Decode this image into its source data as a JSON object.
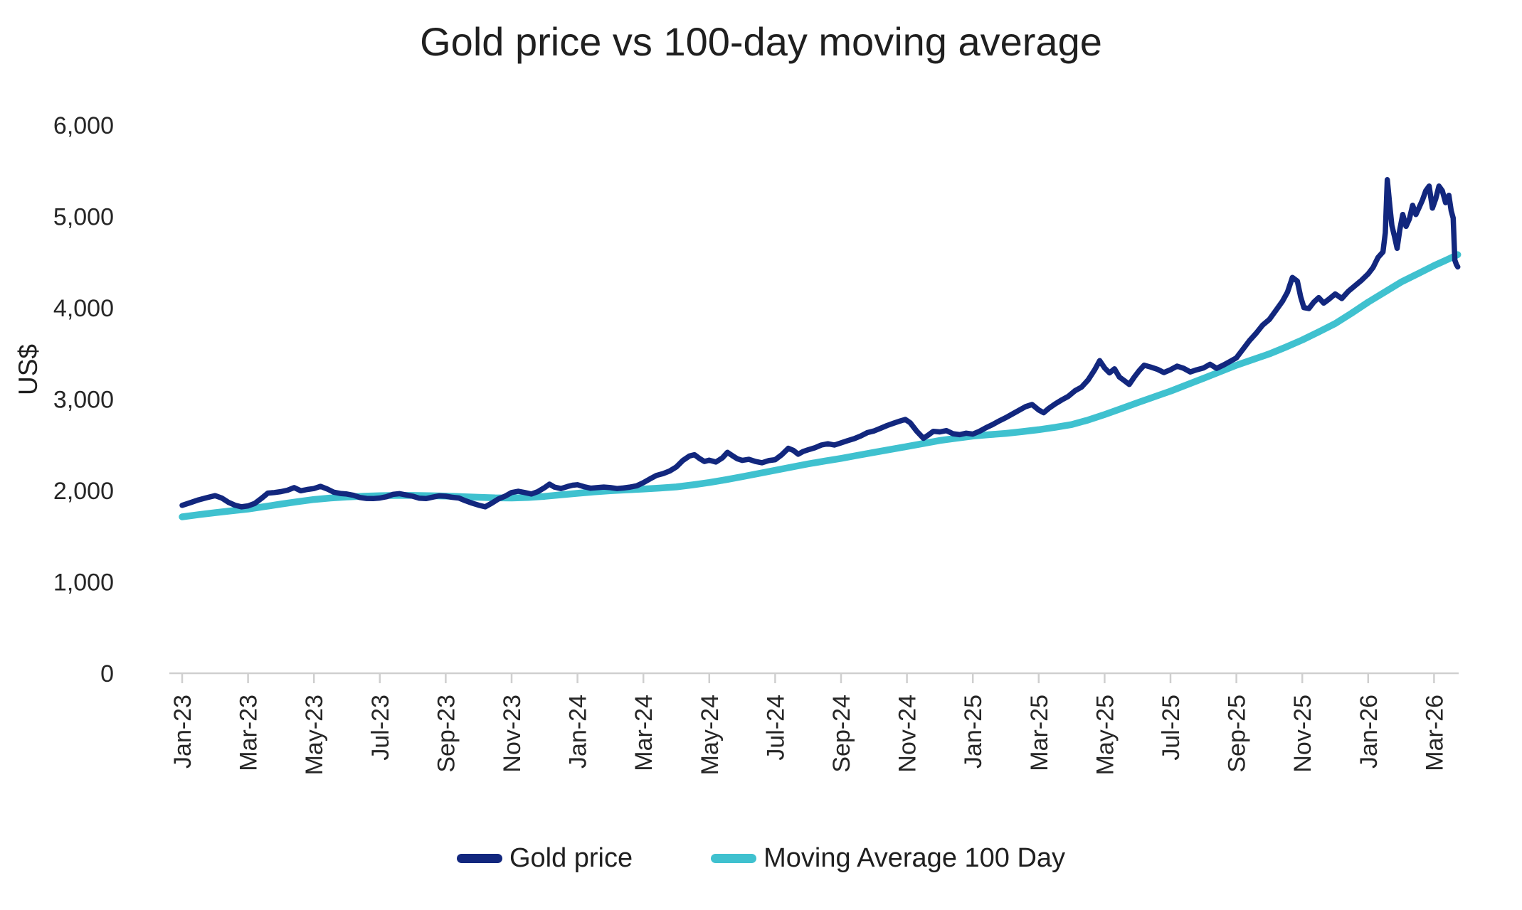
{
  "title": "Gold price vs 100-day moving average",
  "y_axis": {
    "label": "US$",
    "range": [
      0,
      6000
    ],
    "ticks": [
      {
        "v": 6000,
        "label": "6,000"
      },
      {
        "v": 5000,
        "label": "5,000"
      },
      {
        "v": 4000,
        "label": "4,000"
      },
      {
        "v": 3000,
        "label": "3,000"
      },
      {
        "v": 2000,
        "label": "2,000"
      },
      {
        "v": 1000,
        "label": "1,000"
      },
      {
        "v": 0,
        "label": "0"
      }
    ]
  },
  "x_axis": {
    "months_per_tick": 2,
    "tick_labels": [
      "Jan-23",
      "Mar-23",
      "May-23",
      "Jul-23",
      "Sep-23",
      "Nov-23",
      "Jan-24",
      "Mar-24",
      "May-24",
      "Jul-24",
      "Sep-24",
      "Nov-24",
      "Jan-25",
      "Mar-25",
      "May-25",
      "Jul-25",
      "Sep-25",
      "Nov-25",
      "Jan-26",
      "Mar-26"
    ]
  },
  "legend": [
    {
      "label": "Gold price",
      "color": "#12277e"
    },
    {
      "label": "Moving Average 100 Day",
      "color": "#3fc1cf"
    }
  ],
  "colors": {
    "axis_line": "#cfcfcf",
    "tick_mark": "#cfcfcf",
    "text": "#262626",
    "gold": "#12277e",
    "ma": "#3fc1cf"
  },
  "chart_data": {
    "type": "line",
    "title": "Gold price vs 100-day moving average",
    "xlabel": "",
    "ylabel": "US$",
    "ylim": [
      0,
      6000
    ],
    "grid": false,
    "legend_position": "bottom",
    "x_unit": "months since Jan-2023 (0 = Jan-23, 2 = Mar-23, ... 38 = Mar-26)",
    "series": [
      {
        "name": "Gold price",
        "color": "#12277e",
        "stroke_width": 7.5,
        "points": [
          [
            0,
            1838
          ],
          [
            0.25,
            1868
          ],
          [
            0.5,
            1898
          ],
          [
            0.75,
            1922
          ],
          [
            1,
            1944
          ],
          [
            1.2,
            1918
          ],
          [
            1.4,
            1872
          ],
          [
            1.6,
            1840
          ],
          [
            1.8,
            1822
          ],
          [
            2,
            1832
          ],
          [
            2.2,
            1858
          ],
          [
            2.4,
            1912
          ],
          [
            2.6,
            1972
          ],
          [
            2.8,
            1978
          ],
          [
            3,
            1988
          ],
          [
            3.2,
            2004
          ],
          [
            3.4,
            2032
          ],
          [
            3.6,
            1998
          ],
          [
            3.8,
            2012
          ],
          [
            4,
            2022
          ],
          [
            4.2,
            2046
          ],
          [
            4.4,
            2018
          ],
          [
            4.6,
            1982
          ],
          [
            4.8,
            1968
          ],
          [
            5,
            1962
          ],
          [
            5.2,
            1948
          ],
          [
            5.4,
            1924
          ],
          [
            5.6,
            1914
          ],
          [
            5.8,
            1912
          ],
          [
            6,
            1918
          ],
          [
            6.2,
            1932
          ],
          [
            6.4,
            1958
          ],
          [
            6.6,
            1966
          ],
          [
            6.8,
            1952
          ],
          [
            7,
            1938
          ],
          [
            7.2,
            1916
          ],
          [
            7.4,
            1912
          ],
          [
            7.6,
            1928
          ],
          [
            7.8,
            1942
          ],
          [
            8,
            1938
          ],
          [
            8.2,
            1926
          ],
          [
            8.4,
            1918
          ],
          [
            8.6,
            1888
          ],
          [
            8.8,
            1862
          ],
          [
            9,
            1840
          ],
          [
            9.2,
            1822
          ],
          [
            9.4,
            1862
          ],
          [
            9.6,
            1908
          ],
          [
            9.8,
            1938
          ],
          [
            10,
            1978
          ],
          [
            10.2,
            1992
          ],
          [
            10.4,
            1978
          ],
          [
            10.6,
            1962
          ],
          [
            10.8,
            1988
          ],
          [
            11,
            2032
          ],
          [
            11.15,
            2070
          ],
          [
            11.3,
            2038
          ],
          [
            11.5,
            2022
          ],
          [
            11.7,
            2044
          ],
          [
            11.85,
            2058
          ],
          [
            12,
            2064
          ],
          [
            12.2,
            2042
          ],
          [
            12.4,
            2026
          ],
          [
            12.6,
            2032
          ],
          [
            12.8,
            2038
          ],
          [
            13,
            2032
          ],
          [
            13.2,
            2022
          ],
          [
            13.4,
            2028
          ],
          [
            13.6,
            2038
          ],
          [
            13.8,
            2052
          ],
          [
            14,
            2086
          ],
          [
            14.2,
            2128
          ],
          [
            14.4,
            2166
          ],
          [
            14.6,
            2186
          ],
          [
            14.8,
            2214
          ],
          [
            15,
            2258
          ],
          [
            15.2,
            2330
          ],
          [
            15.4,
            2378
          ],
          [
            15.55,
            2392
          ],
          [
            15.7,
            2352
          ],
          [
            15.85,
            2318
          ],
          [
            16,
            2332
          ],
          [
            16.2,
            2312
          ],
          [
            16.4,
            2358
          ],
          [
            16.55,
            2418
          ],
          [
            16.7,
            2382
          ],
          [
            16.85,
            2348
          ],
          [
            17,
            2330
          ],
          [
            17.2,
            2342
          ],
          [
            17.4,
            2318
          ],
          [
            17.6,
            2304
          ],
          [
            17.8,
            2328
          ],
          [
            18,
            2338
          ],
          [
            18.2,
            2392
          ],
          [
            18.4,
            2462
          ],
          [
            18.55,
            2440
          ],
          [
            18.7,
            2398
          ],
          [
            18.85,
            2428
          ],
          [
            19,
            2446
          ],
          [
            19.2,
            2468
          ],
          [
            19.4,
            2498
          ],
          [
            19.6,
            2512
          ],
          [
            19.8,
            2498
          ],
          [
            20,
            2522
          ],
          [
            20.2,
            2546
          ],
          [
            20.4,
            2568
          ],
          [
            20.6,
            2598
          ],
          [
            20.8,
            2634
          ],
          [
            21,
            2652
          ],
          [
            21.2,
            2682
          ],
          [
            21.4,
            2712
          ],
          [
            21.6,
            2738
          ],
          [
            21.8,
            2762
          ],
          [
            21.95,
            2778
          ],
          [
            22.1,
            2742
          ],
          [
            22.3,
            2648
          ],
          [
            22.5,
            2572
          ],
          [
            22.65,
            2608
          ],
          [
            22.8,
            2648
          ],
          [
            23,
            2642
          ],
          [
            23.2,
            2656
          ],
          [
            23.4,
            2622
          ],
          [
            23.6,
            2612
          ],
          [
            23.8,
            2628
          ],
          [
            24,
            2618
          ],
          [
            24.2,
            2648
          ],
          [
            24.4,
            2688
          ],
          [
            24.6,
            2722
          ],
          [
            24.8,
            2762
          ],
          [
            25,
            2798
          ],
          [
            25.2,
            2838
          ],
          [
            25.4,
            2878
          ],
          [
            25.6,
            2918
          ],
          [
            25.8,
            2942
          ],
          [
            26,
            2882
          ],
          [
            26.15,
            2852
          ],
          [
            26.3,
            2898
          ],
          [
            26.5,
            2948
          ],
          [
            26.7,
            2992
          ],
          [
            26.9,
            3032
          ],
          [
            27.1,
            3092
          ],
          [
            27.3,
            3132
          ],
          [
            27.5,
            3212
          ],
          [
            27.7,
            3322
          ],
          [
            27.85,
            3422
          ],
          [
            28,
            3342
          ],
          [
            28.15,
            3288
          ],
          [
            28.3,
            3332
          ],
          [
            28.45,
            3242
          ],
          [
            28.6,
            3202
          ],
          [
            28.75,
            3162
          ],
          [
            28.9,
            3242
          ],
          [
            29.05,
            3312
          ],
          [
            29.2,
            3372
          ],
          [
            29.4,
            3352
          ],
          [
            29.6,
            3328
          ],
          [
            29.8,
            3292
          ],
          [
            30,
            3322
          ],
          [
            30.2,
            3362
          ],
          [
            30.4,
            3338
          ],
          [
            30.6,
            3298
          ],
          [
            30.8,
            3322
          ],
          [
            31,
            3342
          ],
          [
            31.2,
            3382
          ],
          [
            31.4,
            3338
          ],
          [
            31.6,
            3372
          ],
          [
            31.8,
            3412
          ],
          [
            32,
            3452
          ],
          [
            32.2,
            3548
          ],
          [
            32.4,
            3642
          ],
          [
            32.6,
            3722
          ],
          [
            32.8,
            3812
          ],
          [
            33,
            3872
          ],
          [
            33.2,
            3972
          ],
          [
            33.4,
            4072
          ],
          [
            33.55,
            4172
          ],
          [
            33.7,
            4332
          ],
          [
            33.85,
            4292
          ],
          [
            33.95,
            4122
          ],
          [
            34.05,
            4002
          ],
          [
            34.2,
            3992
          ],
          [
            34.35,
            4062
          ],
          [
            34.5,
            4112
          ],
          [
            34.65,
            4052
          ],
          [
            34.8,
            4092
          ],
          [
            35,
            4152
          ],
          [
            35.2,
            4102
          ],
          [
            35.4,
            4182
          ],
          [
            35.6,
            4242
          ],
          [
            35.8,
            4302
          ],
          [
            36,
            4372
          ],
          [
            36.15,
            4442
          ],
          [
            36.3,
            4552
          ],
          [
            36.45,
            4612
          ],
          [
            36.52,
            4822
          ],
          [
            36.58,
            5402
          ],
          [
            36.66,
            5102
          ],
          [
            36.72,
            4902
          ],
          [
            36.8,
            4782
          ],
          [
            36.88,
            4652
          ],
          [
            36.96,
            4852
          ],
          [
            37.05,
            5022
          ],
          [
            37.15,
            4892
          ],
          [
            37.25,
            4972
          ],
          [
            37.35,
            5122
          ],
          [
            37.45,
            5022
          ],
          [
            37.55,
            5102
          ],
          [
            37.65,
            5182
          ],
          [
            37.75,
            5282
          ],
          [
            37.85,
            5332
          ],
          [
            37.95,
            5092
          ],
          [
            38.05,
            5192
          ],
          [
            38.15,
            5332
          ],
          [
            38.25,
            5282
          ],
          [
            38.35,
            5152
          ],
          [
            38.45,
            5232
          ],
          [
            38.52,
            5062
          ],
          [
            38.58,
            4982
          ],
          [
            38.63,
            4522
          ],
          [
            38.68,
            4472
          ],
          [
            38.72,
            4448
          ]
        ]
      },
      {
        "name": "Moving Average 100 Day",
        "color": "#3fc1cf",
        "stroke_width": 9.5,
        "points": [
          [
            0,
            1712
          ],
          [
            0.5,
            1736
          ],
          [
            1,
            1758
          ],
          [
            1.5,
            1778
          ],
          [
            2,
            1798
          ],
          [
            2.5,
            1824
          ],
          [
            3,
            1852
          ],
          [
            3.5,
            1878
          ],
          [
            4,
            1902
          ],
          [
            4.5,
            1918
          ],
          [
            5,
            1930
          ],
          [
            5.5,
            1938
          ],
          [
            6,
            1944
          ],
          [
            6.5,
            1946
          ],
          [
            7,
            1946
          ],
          [
            7.5,
            1944
          ],
          [
            8,
            1940
          ],
          [
            8.5,
            1933
          ],
          [
            9,
            1926
          ],
          [
            9.5,
            1920
          ],
          [
            10,
            1918
          ],
          [
            10.5,
            1924
          ],
          [
            11,
            1936
          ],
          [
            11.5,
            1953
          ],
          [
            12,
            1970
          ],
          [
            12.5,
            1985
          ],
          [
            13,
            1998
          ],
          [
            13.5,
            2008
          ],
          [
            14,
            2016
          ],
          [
            14.5,
            2027
          ],
          [
            15,
            2040
          ],
          [
            15.5,
            2062
          ],
          [
            16,
            2088
          ],
          [
            16.5,
            2118
          ],
          [
            17,
            2152
          ],
          [
            17.5,
            2187
          ],
          [
            18,
            2222
          ],
          [
            18.5,
            2257
          ],
          [
            19,
            2292
          ],
          [
            19.5,
            2322
          ],
          [
            20,
            2352
          ],
          [
            20.5,
            2385
          ],
          [
            21,
            2418
          ],
          [
            21.5,
            2450
          ],
          [
            22,
            2482
          ],
          [
            22.5,
            2515
          ],
          [
            23,
            2548
          ],
          [
            23.5,
            2573
          ],
          [
            24,
            2596
          ],
          [
            24.5,
            2612
          ],
          [
            25,
            2626
          ],
          [
            25.5,
            2645
          ],
          [
            26,
            2666
          ],
          [
            26.5,
            2692
          ],
          [
            27,
            2722
          ],
          [
            27.5,
            2772
          ],
          [
            28,
            2832
          ],
          [
            28.5,
            2896
          ],
          [
            29,
            2962
          ],
          [
            29.5,
            3025
          ],
          [
            30,
            3088
          ],
          [
            30.5,
            3158
          ],
          [
            31,
            3228
          ],
          [
            31.5,
            3300
          ],
          [
            32,
            3372
          ],
          [
            32.5,
            3434
          ],
          [
            33,
            3496
          ],
          [
            33.5,
            3570
          ],
          [
            34,
            3648
          ],
          [
            34.5,
            3736
          ],
          [
            35,
            3828
          ],
          [
            35.5,
            3942
          ],
          [
            36,
            4062
          ],
          [
            36.5,
            4172
          ],
          [
            37,
            4282
          ],
          [
            37.5,
            4372
          ],
          [
            38,
            4462
          ],
          [
            38.4,
            4528
          ],
          [
            38.72,
            4582
          ]
        ]
      }
    ]
  }
}
